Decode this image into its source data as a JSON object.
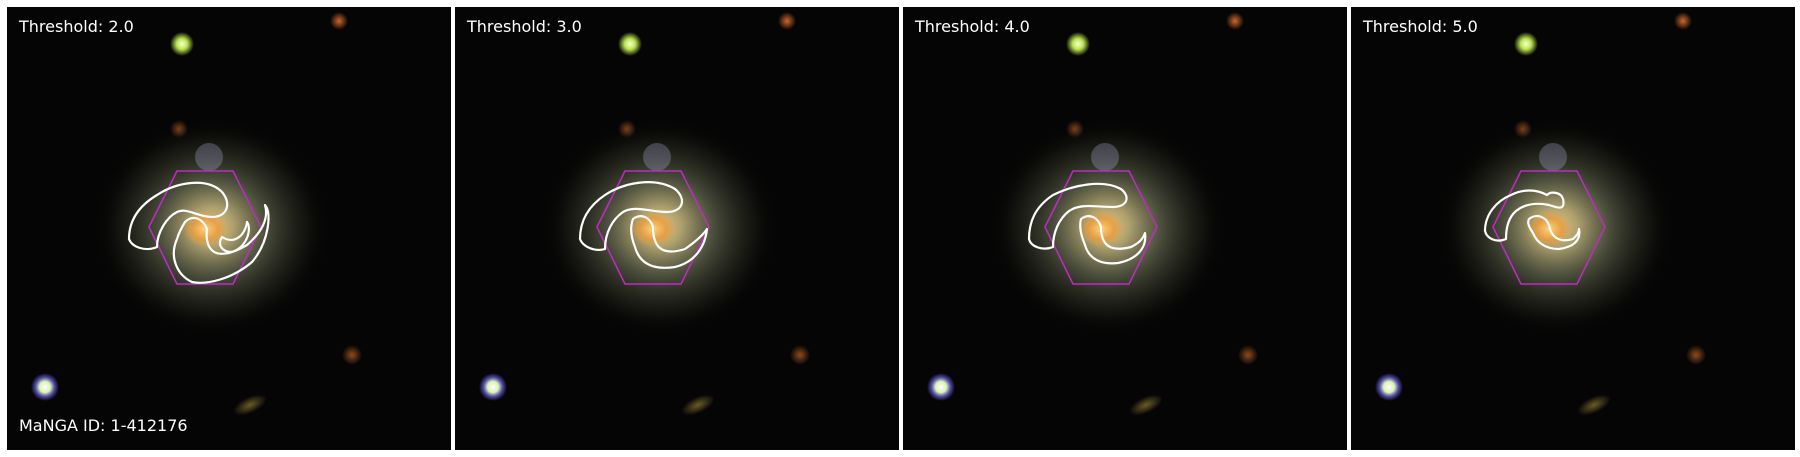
{
  "panels": [
    {
      "threshold_label": "Threshold: 2.0"
    },
    {
      "threshold_label": "Threshold: 3.0"
    },
    {
      "threshold_label": "Threshold: 4.0"
    },
    {
      "threshold_label": "Threshold: 5.0"
    }
  ],
  "manga_id_label": "MaNGA ID: 1-412176",
  "colors": {
    "background": "#000000",
    "contour": "#ffffff",
    "hexagon": "#c02bc6",
    "galaxy_core": "#f0a040",
    "galaxy_halo": "#8a8f6a"
  },
  "icons": [
    "galaxy-image",
    "spiral-arm-contour",
    "ifu-hexagon"
  ]
}
